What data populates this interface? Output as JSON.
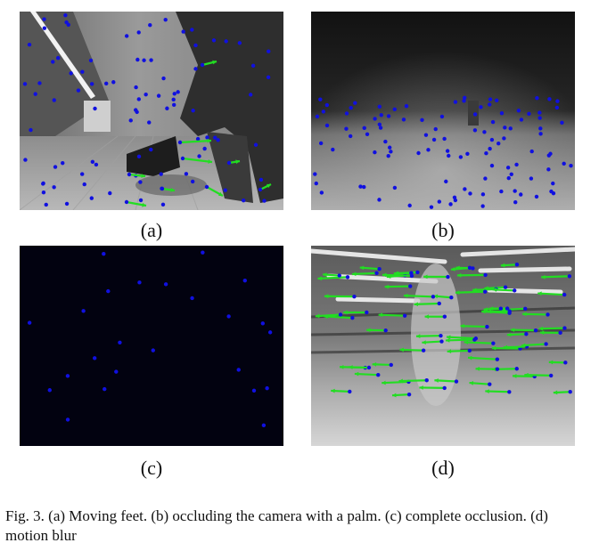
{
  "figure": {
    "panels": [
      {
        "label": "(a)",
        "description_icon": "moving-feet-photo"
      },
      {
        "label": "(b)",
        "description_icon": "palm-occlusion-photo"
      },
      {
        "label": "(c)",
        "description_icon": "complete-occlusion-photo"
      },
      {
        "label": "(d)",
        "description_icon": "motion-blur-photo"
      }
    ],
    "caption": "Fig. 3.   (a) Moving feet. (b) occluding the camera with a palm. (c) complete occlusion. (d) motion blur"
  },
  "colors": {
    "feature_point": "#1010e0",
    "flow_arrow": "#22dd22",
    "background_dark": "#020210"
  }
}
